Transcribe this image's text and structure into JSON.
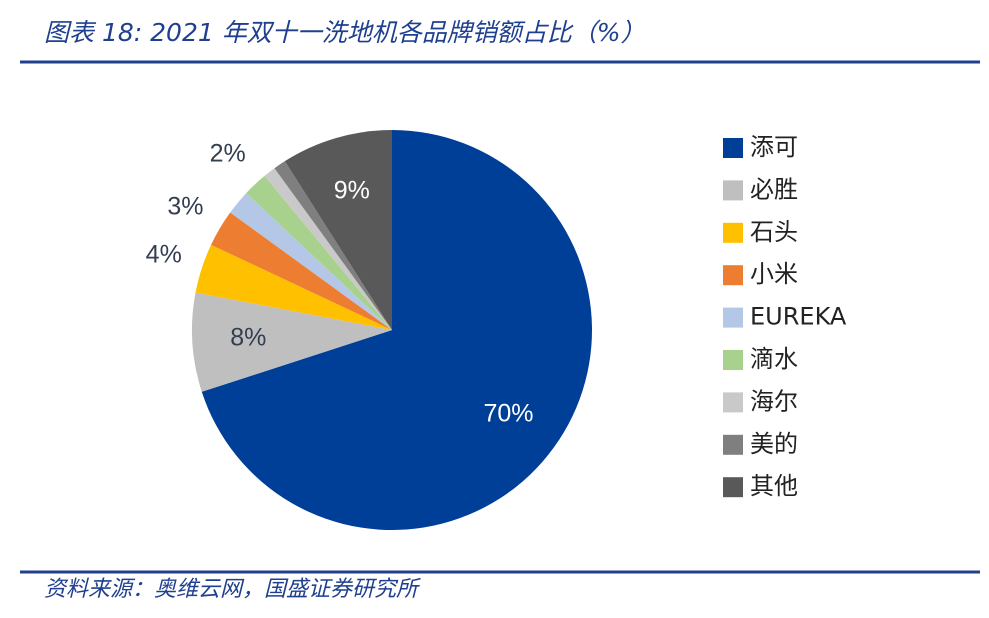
{
  "chart_data": {
    "type": "pie",
    "title": "图表 18:  2021 年双十一洗地机各品牌销额占比（%）",
    "categories": [
      "添可",
      "必胜",
      "石头",
      "小米",
      "EUREKA",
      "滴水",
      "海尔",
      "美的",
      "其他"
    ],
    "values": [
      70,
      8,
      4,
      3,
      2,
      2,
      1,
      1,
      9
    ],
    "value_labels": [
      "70%",
      "8%",
      "4%",
      "3%",
      null,
      "2%",
      null,
      null,
      "9%"
    ],
    "colors": [
      "#003f98",
      "#bfbfbf",
      "#ffc000",
      "#ed7d31",
      "#b4c7e7",
      "#a9d18e",
      "#c9c9c9",
      "#7f7f7f",
      "#595959"
    ],
    "legend": "right"
  },
  "source": "资料来源：奥维云网，国盛证券研究所"
}
